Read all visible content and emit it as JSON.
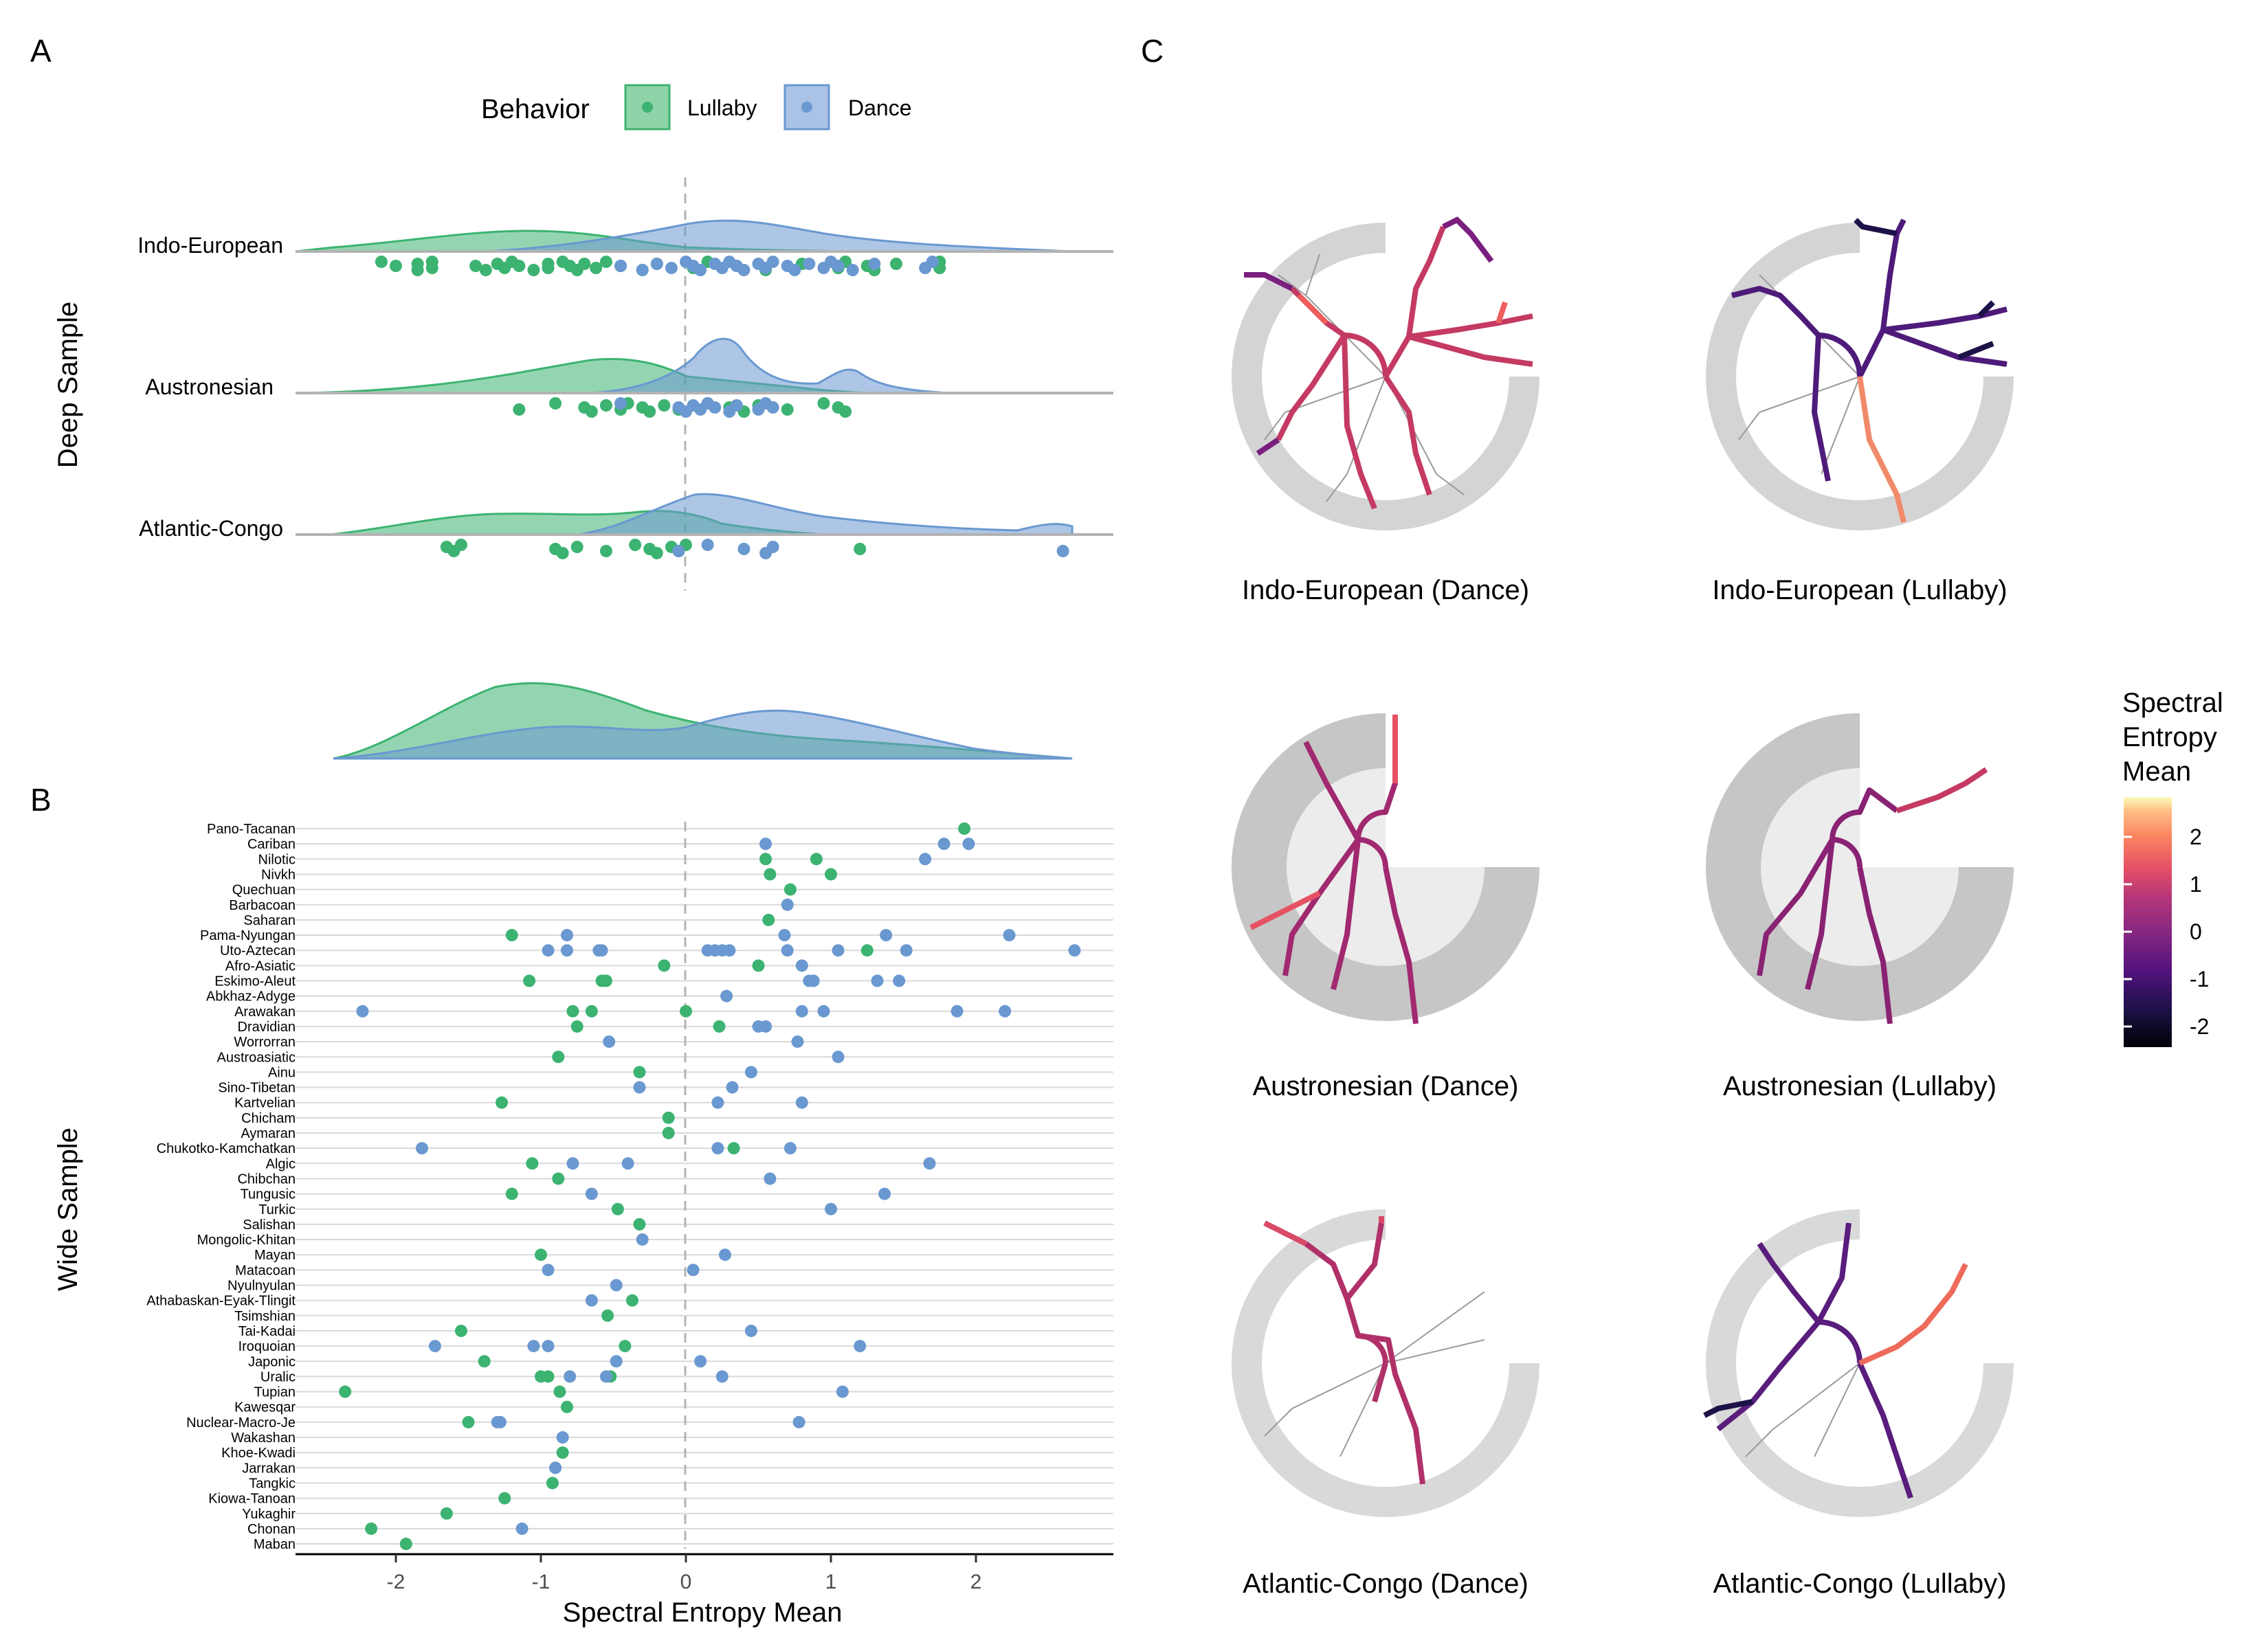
{
  "panel_labels": {
    "a": "A",
    "b": "B",
    "c": "C"
  },
  "legend": {
    "title": "Behavior",
    "items": [
      {
        "label": "Lullaby",
        "color": "#3CB371"
      },
      {
        "label": "Dance",
        "color": "#6A98D0"
      }
    ]
  },
  "colors": {
    "lullaby": "#3CB371",
    "dance": "#6A98D0",
    "zero_line": "#b3b3b3",
    "grid": "#d9d9d9"
  },
  "y_titles": {
    "deep": "Deep Sample",
    "wide": "Wide Sample"
  },
  "x_axis": {
    "title": "Spectral Entropy Mean",
    "ticks": [
      "-2",
      "-1",
      "0",
      "1",
      "2"
    ]
  },
  "colorbar": {
    "title_lines": [
      "Spectral",
      "Entropy",
      "Mean"
    ],
    "ticks": [
      "2",
      "1",
      "0",
      "-1",
      "-2"
    ],
    "scale": "magma"
  },
  "trees": [
    {
      "label": "Indo-European (Dance)",
      "accent": "#C43A63"
    },
    {
      "label": "Indo-European (Lullaby)",
      "accent": "#4E1B7A"
    },
    {
      "label": "Austronesian (Dance)",
      "accent": "#A1296F"
    },
    {
      "label": "Austronesian (Lullaby)",
      "accent": "#8A2273"
    },
    {
      "label": "Atlantic-Congo (Dance)",
      "accent": "#B03169"
    },
    {
      "label": "Atlantic-Congo (Lullaby)",
      "accent": "#5A1D7D"
    }
  ],
  "chart_data": [
    {
      "type": "scatter",
      "panel": "A",
      "ylabel": "Deep Sample",
      "xlim": [
        -2.7,
        2.9
      ],
      "series": [
        {
          "name": "Lullaby"
        },
        {
          "name": "Dance"
        }
      ],
      "groups": [
        {
          "name": "Indo-European",
          "lullaby": [
            -2.1,
            -2.0,
            -1.85,
            -1.85,
            -1.75,
            -1.75,
            -1.45,
            -1.38,
            -1.3,
            -1.25,
            -1.2,
            -1.15,
            -1.05,
            -0.95,
            -0.95,
            -0.85,
            -0.8,
            -0.75,
            -0.7,
            -0.62,
            -0.55,
            -0.45,
            -0.3,
            -0.2,
            0.05,
            0.15,
            0.35,
            0.55,
            0.8,
            1.05,
            1.1,
            1.25,
            1.3,
            1.45,
            1.75,
            1.75
          ],
          "dance": [
            -0.45,
            -0.3,
            -0.2,
            -0.1,
            0.0,
            0.05,
            0.1,
            0.2,
            0.25,
            0.3,
            0.35,
            0.4,
            0.5,
            0.55,
            0.6,
            0.7,
            0.75,
            0.85,
            0.95,
            1.0,
            1.05,
            1.15,
            1.3,
            1.65,
            1.7
          ]
        },
        {
          "name": "Austronesian",
          "lullaby": [
            -1.15,
            -0.9,
            -0.7,
            -0.65,
            -0.55,
            -0.45,
            -0.4,
            -0.3,
            -0.25,
            -0.15,
            -0.05,
            0.15,
            0.3,
            0.4,
            0.5,
            0.7,
            0.95,
            1.05,
            1.1
          ],
          "dance": [
            -0.45,
            -0.05,
            0.0,
            0.05,
            0.1,
            0.15,
            0.2,
            0.3,
            0.35,
            0.5,
            0.55,
            0.6
          ]
        },
        {
          "name": "Atlantic-Congo",
          "lullaby": [
            -1.65,
            -1.6,
            -1.55,
            -0.9,
            -0.85,
            -0.75,
            -0.55,
            -0.35,
            -0.25,
            -0.2,
            -0.1,
            -0.05,
            0.0,
            1.2
          ],
          "dance": [
            -0.05,
            0.15,
            0.4,
            0.55,
            0.6,
            2.6
          ]
        }
      ]
    },
    {
      "type": "area",
      "panel": "A (marginal density)",
      "x": [
        -2.4,
        -2.0,
        -1.6,
        -1.2,
        -0.8,
        -0.4,
        0.0,
        0.4,
        0.8,
        1.2,
        1.6,
        2.0,
        2.4,
        2.7
      ],
      "series": [
        {
          "name": "Lullaby",
          "values": [
            0.02,
            0.1,
            0.42,
            0.85,
            0.95,
            0.7,
            0.42,
            0.3,
            0.22,
            0.16,
            0.1,
            0.05,
            0.02,
            0.01
          ]
        },
        {
          "name": "Dance",
          "values": [
            0.01,
            0.03,
            0.1,
            0.2,
            0.3,
            0.35,
            0.52,
            0.8,
            0.75,
            0.55,
            0.35,
            0.2,
            0.1,
            0.05
          ]
        }
      ]
    },
    {
      "type": "scatter",
      "panel": "B",
      "ylabel": "Wide Sample",
      "xlabel": "Spectral Entropy Mean",
      "xlim": [
        -2.7,
        2.9
      ],
      "categories": [
        "Pano-Tacanan",
        "Cariban",
        "Nilotic",
        "Nivkh",
        "Quechuan",
        "Barbacoan",
        "Saharan",
        "Pama-Nyungan",
        "Uto-Aztecan",
        "Afro-Asiatic",
        "Eskimo-Aleut",
        "Abkhaz-Adyge",
        "Arawakan",
        "Dravidian",
        "Worrorran",
        "Austroasiatic",
        "Ainu",
        "Sino-Tibetan",
        "Kartvelian",
        "Chicham",
        "Aymaran",
        "Chukotko-Kamchatkan",
        "Algic",
        "Chibchan",
        "Tungusic",
        "Turkic",
        "Salishan",
        "Mongolic-Khitan",
        "Mayan",
        "Matacoan",
        "Nyulnyulan",
        "Athabaskan-Eyak-Tlingit",
        "Tsimshian",
        "Tai-Kadai",
        "Iroquoian",
        "Japonic",
        "Uralic",
        "Tupian",
        "Kawesqar",
        "Nuclear-Macro-Je",
        "Wakashan",
        "Khoe-Kwadi",
        "Jarrakan",
        "Tangkic",
        "Kiowa-Tanoan",
        "Yukaghir",
        "Chonan",
        "Maban"
      ],
      "lullaby": [
        [
          1.92
        ],
        [],
        [
          0.9,
          0.55
        ],
        [
          1.0,
          0.58
        ],
        [
          0.72
        ],
        [],
        [
          0.57
        ],
        [
          -1.2
        ],
        [
          1.25
        ],
        [
          -0.15,
          0.5
        ],
        [
          -0.55,
          -1.08,
          -0.58
        ],
        [],
        [
          -0.78,
          -0.65,
          0.0
        ],
        [
          -0.75,
          0.23
        ],
        [],
        [
          -0.88
        ],
        [
          -0.32
        ],
        [],
        [
          -1.27
        ],
        [
          -0.12
        ],
        [
          -0.12
        ],
        [
          0.33
        ],
        [
          -1.06
        ],
        [
          -0.88
        ],
        [
          -1.2
        ],
        [
          -0.47
        ],
        [
          -0.32
        ],
        [],
        [
          -1.0
        ],
        [],
        [],
        [
          -0.37
        ],
        [
          -0.54
        ],
        [
          -1.55
        ],
        [
          -0.42
        ],
        [
          -1.39
        ],
        [
          -0.95,
          -1.0,
          -0.52
        ],
        [
          -2.35,
          -0.87
        ],
        [
          -0.82
        ],
        [
          -1.5
        ],
        [],
        [
          -0.85
        ],
        [
          -0.9
        ],
        [
          -0.92
        ],
        [
          -1.25
        ],
        [
          -1.65
        ],
        [
          -2.17
        ],
        [
          -1.93
        ]
      ],
      "dance": [
        [],
        [
          0.55,
          1.78,
          1.95
        ],
        [
          1.65
        ],
        [],
        [],
        [
          0.7
        ],
        [],
        [
          -0.82,
          0.68,
          1.38,
          2.23
        ],
        [
          -0.95,
          -0.82,
          -0.6,
          -0.58,
          0.15,
          0.2,
          0.25,
          0.3,
          0.7,
          1.05,
          1.52,
          2.68
        ],
        [
          0.8
        ],
        [
          0.85,
          0.88,
          1.32,
          1.47
        ],
        [
          0.28
        ],
        [
          -2.23,
          0.8,
          0.95,
          1.87,
          2.2
        ],
        [
          0.5,
          0.55
        ],
        [
          -0.53,
          0.77
        ],
        [
          1.05
        ],
        [
          0.45
        ],
        [
          -0.32,
          0.32
        ],
        [
          0.22,
          0.8
        ],
        [],
        [],
        [
          -1.82,
          0.22,
          0.72
        ],
        [
          -0.78,
          -0.4,
          1.68
        ],
        [
          0.58
        ],
        [
          -0.65,
          1.37
        ],
        [
          1.0
        ],
        [],
        [
          -0.3
        ],
        [
          0.27
        ],
        [
          -0.95,
          0.05
        ],
        [
          -0.48
        ],
        [
          -0.65
        ],
        [],
        [
          0.45
        ],
        [
          -1.73,
          -1.05,
          -0.95,
          1.2
        ],
        [
          -0.48,
          0.1
        ],
        [
          -0.8,
          -0.55,
          0.25
        ],
        [
          1.08
        ],
        [],
        [
          -1.3,
          -1.28,
          0.78
        ],
        [
          -0.85
        ],
        [],
        [
          -0.9
        ],
        [],
        [],
        [],
        [
          -1.13
        ],
        []
      ]
    }
  ]
}
